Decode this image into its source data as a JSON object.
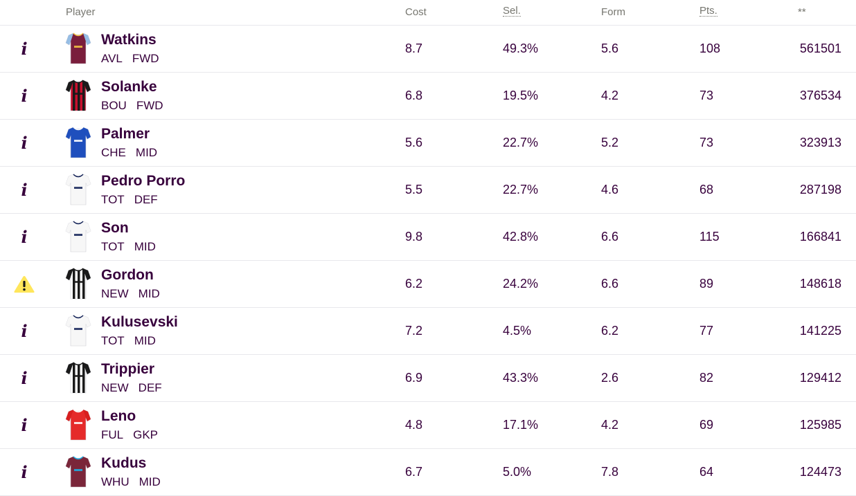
{
  "header": {
    "player": "Player",
    "cost": "Cost",
    "sel": "Sel.",
    "form": "Form",
    "pts": "Pts.",
    "extra": "**"
  },
  "colors": {
    "text": "#37003c",
    "header_text": "#76766f",
    "row_border": "#e8e8ec",
    "warning": "#ffe65b"
  },
  "players": [
    {
      "name": "Watkins",
      "team": "AVL",
      "pos": "FWD",
      "cost": "8.7",
      "sel": "49.3%",
      "form": "5.6",
      "pts": "108",
      "extra": "561501",
      "status_icon": "info-icon",
      "kit": {
        "body": "#7a1e3c",
        "sleeve": "#96bde4",
        "trim": "#f4c543",
        "stripe": ""
      }
    },
    {
      "name": "Solanke",
      "team": "BOU",
      "pos": "FWD",
      "cost": "6.8",
      "sel": "19.5%",
      "form": "4.2",
      "pts": "73",
      "extra": "376534",
      "status_icon": "info-icon",
      "kit": {
        "body": "#c8102e",
        "sleeve": "#1a1a1a",
        "trim": "#1a1a1a",
        "stripe": "#1a1a1a"
      }
    },
    {
      "name": "Palmer",
      "team": "CHE",
      "pos": "MID",
      "cost": "5.6",
      "sel": "22.7%",
      "form": "5.2",
      "pts": "73",
      "extra": "323913",
      "status_icon": "info-icon",
      "kit": {
        "body": "#1f4fbd",
        "sleeve": "#1f4fbd",
        "trim": "#ffffff",
        "stripe": ""
      }
    },
    {
      "name": "Pedro Porro",
      "team": "TOT",
      "pos": "DEF",
      "cost": "5.5",
      "sel": "22.7%",
      "form": "4.6",
      "pts": "68",
      "extra": "287198",
      "status_icon": "info-icon",
      "kit": {
        "body": "#f7f7f7",
        "sleeve": "#f7f7f7",
        "trim": "#132257",
        "stripe": ""
      }
    },
    {
      "name": "Son",
      "team": "TOT",
      "pos": "MID",
      "cost": "9.8",
      "sel": "42.8%",
      "form": "6.6",
      "pts": "115",
      "extra": "166841",
      "status_icon": "info-icon",
      "kit": {
        "body": "#f7f7f7",
        "sleeve": "#f7f7f7",
        "trim": "#132257",
        "stripe": ""
      }
    },
    {
      "name": "Gordon",
      "team": "NEW",
      "pos": "MID",
      "cost": "6.2",
      "sel": "24.2%",
      "form": "6.6",
      "pts": "89",
      "extra": "148618",
      "status_icon": "warning-icon",
      "kit": {
        "body": "#ffffff",
        "sleeve": "#1a1a1a",
        "trim": "#1a1a1a",
        "stripe": "#1a1a1a"
      }
    },
    {
      "name": "Kulusevski",
      "team": "TOT",
      "pos": "MID",
      "cost": "7.2",
      "sel": "4.5%",
      "form": "6.2",
      "pts": "77",
      "extra": "141225",
      "status_icon": "info-icon",
      "kit": {
        "body": "#f7f7f7",
        "sleeve": "#f7f7f7",
        "trim": "#132257",
        "stripe": ""
      }
    },
    {
      "name": "Trippier",
      "team": "NEW",
      "pos": "DEF",
      "cost": "6.9",
      "sel": "43.3%",
      "form": "2.6",
      "pts": "82",
      "extra": "129412",
      "status_icon": "info-icon",
      "kit": {
        "body": "#ffffff",
        "sleeve": "#1a1a1a",
        "trim": "#1a1a1a",
        "stripe": "#1a1a1a"
      }
    },
    {
      "name": "Leno",
      "team": "FUL",
      "pos": "GKP",
      "cost": "4.8",
      "sel": "17.1%",
      "form": "4.2",
      "pts": "69",
      "extra": "125985",
      "status_icon": "info-icon",
      "kit": {
        "body": "#e52a2a",
        "sleeve": "#d81f1f",
        "trim": "#ffffff",
        "stripe": ""
      }
    },
    {
      "name": "Kudus",
      "team": "WHU",
      "pos": "MID",
      "cost": "6.7",
      "sel": "5.0%",
      "form": "7.8",
      "pts": "64",
      "extra": "124473",
      "status_icon": "info-icon",
      "kit": {
        "body": "#7a263a",
        "sleeve": "#7a263a",
        "trim": "#1bb1e7",
        "stripe": ""
      }
    }
  ]
}
